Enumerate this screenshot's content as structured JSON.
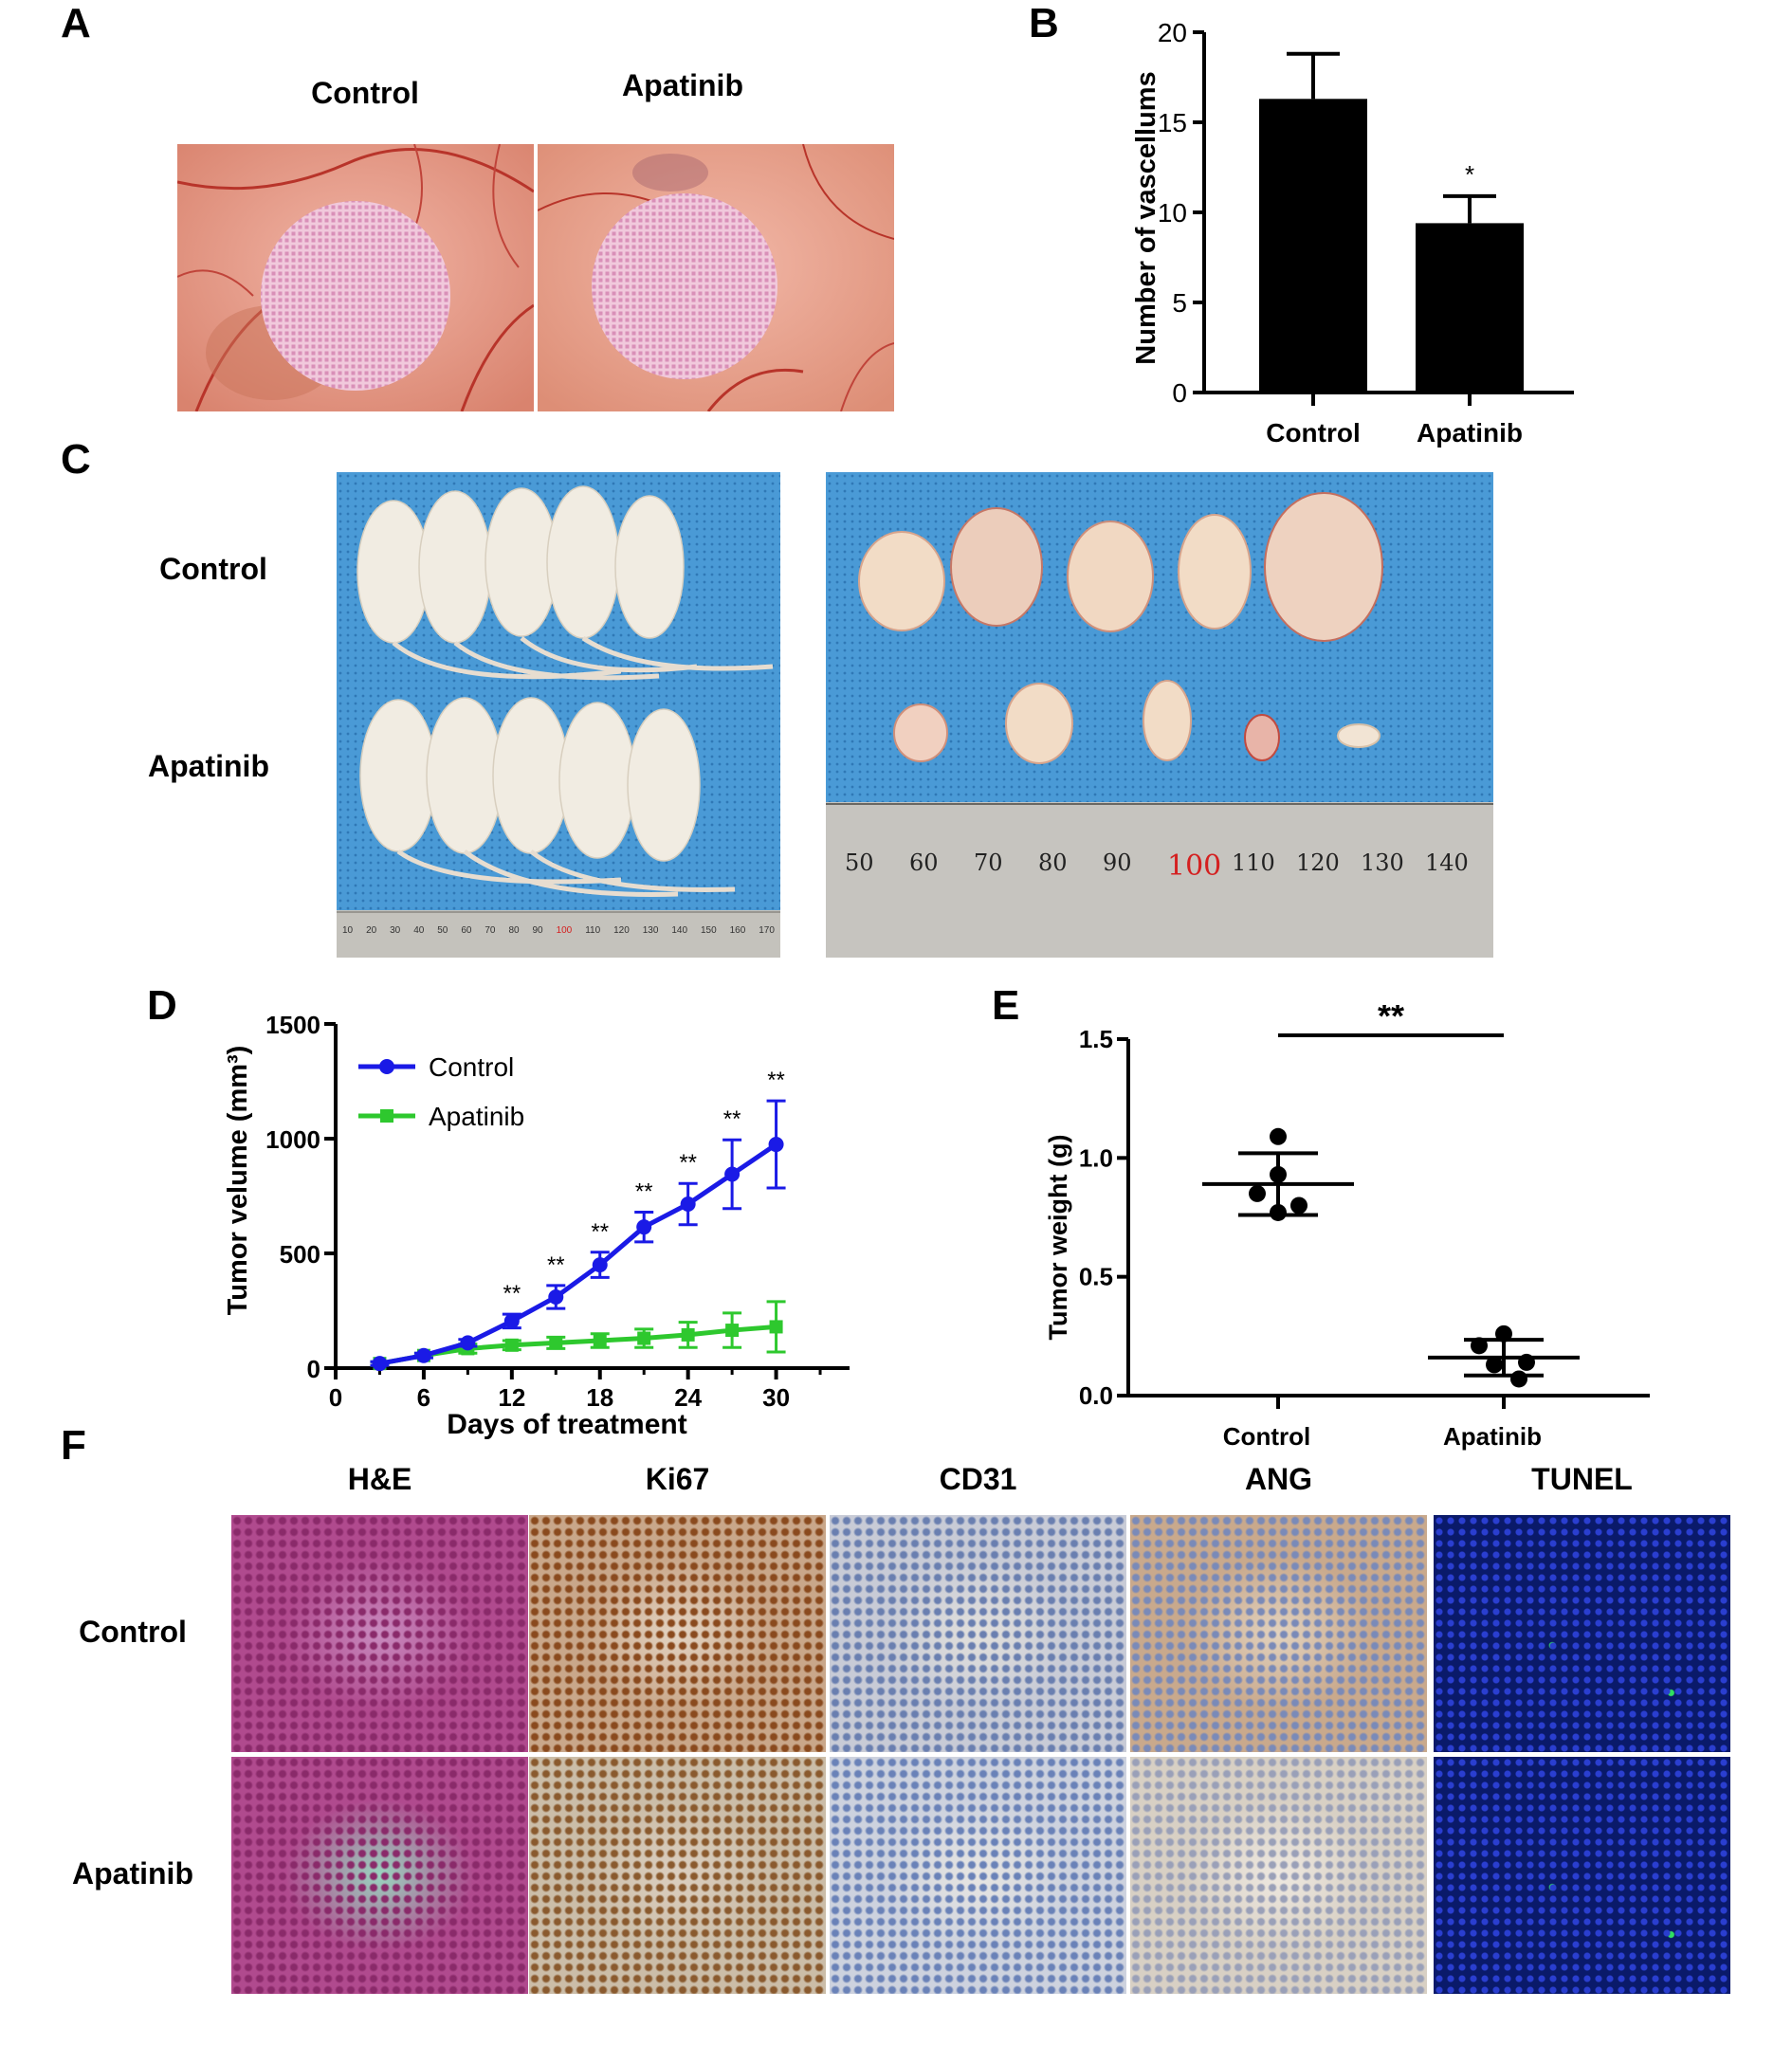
{
  "panel_letters": {
    "a": "A",
    "b": "B",
    "c": "C",
    "d": "D",
    "e": "E",
    "f": "F"
  },
  "panel_a": {
    "labels": [
      "Control",
      "Apatinib"
    ]
  },
  "panel_c": {
    "row_labels": [
      "Control",
      "Apatinib"
    ],
    "ruler_ticks": [
      "50",
      "60",
      "70",
      "80",
      "90",
      "100",
      "110",
      "120",
      "130",
      "140"
    ],
    "small_ruler_ticks": [
      "10",
      "20",
      "30",
      "40",
      "50",
      "60",
      "70",
      "80",
      "90",
      "100",
      "110",
      "120",
      "130",
      "140",
      "150",
      "160",
      "170"
    ]
  },
  "panel_f": {
    "columns": [
      "H&E",
      "Ki67",
      "CD31",
      "ANG",
      "TUNEL"
    ],
    "rows": [
      "Control",
      "Apatinib"
    ]
  },
  "colors": {
    "control_line": "#1a1ae6",
    "apatinib_line": "#2ec82e",
    "bar": "#000000",
    "red_mark": "#d42020"
  },
  "chart_data": [
    {
      "type": "bar",
      "panel": "B",
      "categories": [
        "Control",
        "Apatinib"
      ],
      "values": [
        16.3,
        9.4
      ],
      "errors": [
        2.5,
        1.5
      ],
      "significance": [
        "",
        "*"
      ],
      "ylabel": "Number of vascellums",
      "ylim": [
        0,
        20
      ],
      "yticks": [
        0,
        5,
        10,
        15,
        20
      ]
    },
    {
      "type": "line",
      "panel": "D",
      "x": [
        3,
        6,
        9,
        12,
        15,
        18,
        21,
        24,
        27,
        30
      ],
      "series": [
        {
          "name": "Control",
          "values": [
            20,
            55,
            110,
            205,
            310,
            450,
            615,
            715,
            845,
            975
          ],
          "errors": [
            8,
            10,
            15,
            30,
            50,
            55,
            65,
            90,
            150,
            190
          ]
        },
        {
          "name": "Apatinib",
          "values": [
            20,
            55,
            85,
            100,
            110,
            120,
            130,
            145,
            165,
            180
          ],
          "errors": [
            8,
            10,
            20,
            20,
            25,
            30,
            40,
            55,
            75,
            110
          ]
        }
      ],
      "significance": [
        "",
        "",
        "",
        "**",
        "**",
        "**",
        "**",
        "**",
        "**",
        "**"
      ],
      "xlabel": "Days of treatment",
      "ylabel": "Tumor velume (mm³)",
      "xlim": [
        0,
        35
      ],
      "ylim": [
        0,
        1500
      ],
      "xticks": [
        0,
        6,
        12,
        18,
        24,
        30
      ],
      "yticks": [
        0,
        500,
        1000,
        1500
      ],
      "legend": "top-left"
    },
    {
      "type": "scatter",
      "panel": "E",
      "categories": [
        "Control",
        "Apatinib"
      ],
      "points": [
        [
          1.09,
          0.93,
          0.85,
          0.8,
          0.77
        ],
        [
          0.26,
          0.21,
          0.14,
          0.13,
          0.07
        ]
      ],
      "mean": [
        0.89,
        0.16
      ],
      "sd": [
        0.13,
        0.075
      ],
      "significance": "**",
      "ylabel": "Tumor weight (g)",
      "ylim": [
        0,
        1.5
      ],
      "yticks": [
        "0.0",
        "0.5",
        "1.0",
        "1.5"
      ]
    }
  ]
}
